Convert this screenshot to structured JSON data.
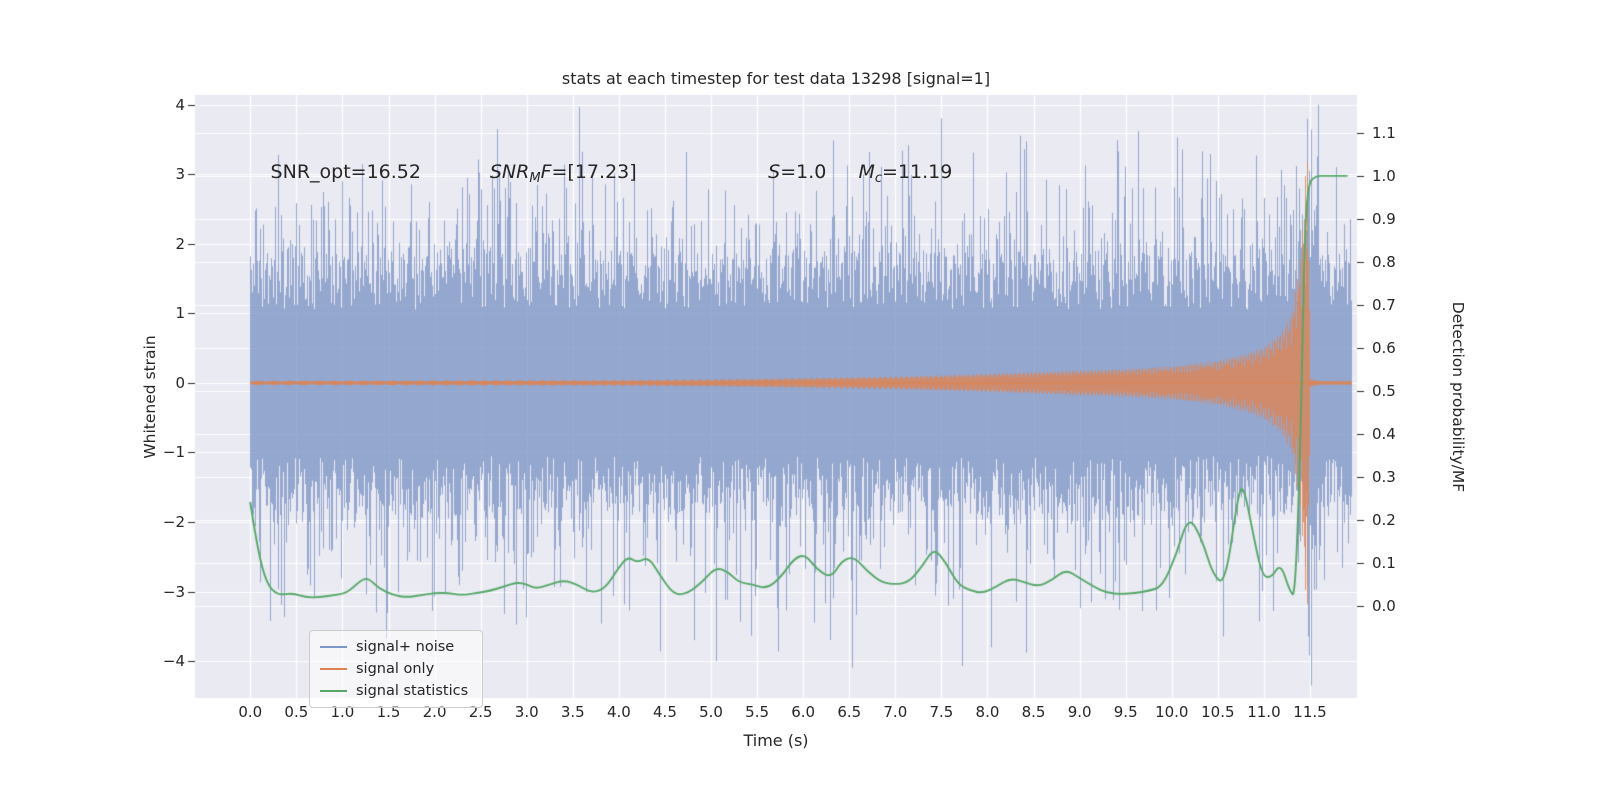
{
  "chart_data": {
    "type": "line",
    "title": "stats at each timestep for test data 13298 [signal=1]",
    "xlabel": "Time (s)",
    "ylabel_left": "Whitened strain",
    "ylabel_right": "Detection probability/MF",
    "xlim": [
      -0.6,
      12.01
    ],
    "ylim_left": [
      -4.53,
      4.14
    ],
    "ylim_right": [
      -0.214,
      1.188
    ],
    "grid": true,
    "background": "#eaeaf2",
    "grid_color": "#ffffff",
    "x_ticks": [
      0.0,
      0.5,
      1.0,
      1.5,
      2.0,
      2.5,
      3.0,
      3.5,
      4.0,
      4.5,
      5.0,
      5.5,
      6.0,
      6.5,
      7.0,
      7.5,
      8.0,
      8.5,
      9.0,
      9.5,
      10.0,
      10.5,
      11.0,
      11.5
    ],
    "y_ticks_left": [
      -4,
      -3,
      -2,
      -1,
      0,
      1,
      2,
      3,
      4
    ],
    "y_ticks_right": [
      0.0,
      0.1,
      0.2,
      0.3,
      0.4,
      0.5,
      0.6,
      0.7,
      0.8,
      0.9,
      1.0,
      1.1
    ],
    "legend": {
      "position": "lower left",
      "entries": [
        {
          "label": "signal+ noise",
          "color": "#7e96c6"
        },
        {
          "label": "signal only",
          "color": "#dd8452"
        },
        {
          "label": "signal statistics",
          "color": "#55a868"
        }
      ]
    },
    "annotations": [
      {
        "id": "snr-opt",
        "x": 0.22,
        "y": 3.03,
        "segments": [
          {
            "t": "SNR_opt=16.52"
          }
        ]
      },
      {
        "id": "snr-mf",
        "x": 2.6,
        "y": 3.03,
        "segments": [
          {
            "t": "SNR",
            "i": true
          },
          {
            "t": "M",
            "i": true,
            "sub": true
          },
          {
            "t": "F",
            "i": true
          },
          {
            "t": "=[17.23]"
          }
        ]
      },
      {
        "id": "s-value",
        "x": 5.62,
        "y": 3.03,
        "segments": [
          {
            "t": "S",
            "i": true
          },
          {
            "t": "=1.0"
          }
        ]
      },
      {
        "id": "chirp-mass",
        "x": 6.6,
        "y": 3.03,
        "segments": [
          {
            "t": "M",
            "i": true
          },
          {
            "t": "c",
            "i": true,
            "sub": true
          },
          {
            "t": "=11.19"
          }
        ]
      }
    ],
    "series": [
      {
        "name": "signal+ noise",
        "kind": "noise",
        "color": "#7e96c6",
        "alpha": 0.8,
        "x_range": [
          0,
          11.95
        ],
        "core_band": [
          1.05,
          1.9
        ],
        "spike_max": 4.0,
        "spike_min": -4.35,
        "burst_time": 11.5,
        "burst_gain": 0.55,
        "seed": 13298
      },
      {
        "name": "signal only",
        "kind": "chirp",
        "color": "#dd8452",
        "alpha": 0.8,
        "x_range": [
          0,
          11.95
        ],
        "merger_time": 11.45,
        "freq": [
          3,
          0.12
        ],
        "envelope": [
          [
            0,
            0.03
          ],
          [
            4,
            0.04
          ],
          [
            5,
            0.05
          ],
          [
            6,
            0.07
          ],
          [
            7,
            0.09
          ],
          [
            8,
            0.13
          ],
          [
            9,
            0.18
          ],
          [
            9.5,
            0.2
          ],
          [
            10,
            0.24
          ],
          [
            10.5,
            0.32
          ],
          [
            10.8,
            0.42
          ],
          [
            11.0,
            0.52
          ],
          [
            11.2,
            0.75
          ],
          [
            11.3,
            1.0
          ],
          [
            11.4,
            1.9
          ],
          [
            11.45,
            3.2
          ],
          [
            11.47,
            3.2
          ],
          [
            11.5,
            0.06
          ],
          [
            11.6,
            0.03
          ],
          [
            11.95,
            0.03
          ]
        ]
      },
      {
        "name": "signal statistics",
        "kind": "line",
        "axis": "right",
        "color": "#55a868",
        "points": [
          [
            0.0,
            0.24
          ],
          [
            0.08,
            0.13
          ],
          [
            0.18,
            0.05
          ],
          [
            0.3,
            0.025
          ],
          [
            0.45,
            0.03
          ],
          [
            0.6,
            0.02
          ],
          [
            0.75,
            0.02
          ],
          [
            0.9,
            0.025
          ],
          [
            1.05,
            0.03
          ],
          [
            1.2,
            0.06
          ],
          [
            1.28,
            0.065
          ],
          [
            1.4,
            0.04
          ],
          [
            1.55,
            0.025
          ],
          [
            1.7,
            0.02
          ],
          [
            1.85,
            0.025
          ],
          [
            2.0,
            0.03
          ],
          [
            2.15,
            0.03
          ],
          [
            2.3,
            0.025
          ],
          [
            2.45,
            0.03
          ],
          [
            2.6,
            0.035
          ],
          [
            2.75,
            0.045
          ],
          [
            2.9,
            0.055
          ],
          [
            3.0,
            0.05
          ],
          [
            3.1,
            0.04
          ],
          [
            3.25,
            0.05
          ],
          [
            3.4,
            0.06
          ],
          [
            3.55,
            0.05
          ],
          [
            3.7,
            0.03
          ],
          [
            3.85,
            0.04
          ],
          [
            4.0,
            0.09
          ],
          [
            4.1,
            0.115
          ],
          [
            4.2,
            0.1
          ],
          [
            4.32,
            0.115
          ],
          [
            4.45,
            0.07
          ],
          [
            4.6,
            0.025
          ],
          [
            4.75,
            0.03
          ],
          [
            4.9,
            0.055
          ],
          [
            5.05,
            0.09
          ],
          [
            5.18,
            0.08
          ],
          [
            5.3,
            0.055
          ],
          [
            5.45,
            0.05
          ],
          [
            5.6,
            0.04
          ],
          [
            5.75,
            0.065
          ],
          [
            5.9,
            0.11
          ],
          [
            6.02,
            0.12
          ],
          [
            6.15,
            0.085
          ],
          [
            6.3,
            0.065
          ],
          [
            6.42,
            0.105
          ],
          [
            6.55,
            0.115
          ],
          [
            6.7,
            0.08
          ],
          [
            6.85,
            0.055
          ],
          [
            7.0,
            0.05
          ],
          [
            7.15,
            0.055
          ],
          [
            7.3,
            0.095
          ],
          [
            7.42,
            0.135
          ],
          [
            7.55,
            0.1
          ],
          [
            7.68,
            0.05
          ],
          [
            7.82,
            0.035
          ],
          [
            7.95,
            0.03
          ],
          [
            8.1,
            0.045
          ],
          [
            8.25,
            0.065
          ],
          [
            8.4,
            0.055
          ],
          [
            8.55,
            0.045
          ],
          [
            8.7,
            0.06
          ],
          [
            8.85,
            0.085
          ],
          [
            9.0,
            0.065
          ],
          [
            9.15,
            0.045
          ],
          [
            9.3,
            0.03
          ],
          [
            9.45,
            0.028
          ],
          [
            9.6,
            0.03
          ],
          [
            9.75,
            0.035
          ],
          [
            9.9,
            0.045
          ],
          [
            10.05,
            0.12
          ],
          [
            10.18,
            0.21
          ],
          [
            10.32,
            0.16
          ],
          [
            10.45,
            0.07
          ],
          [
            10.58,
            0.05
          ],
          [
            10.72,
            0.26
          ],
          [
            10.78,
            0.28
          ],
          [
            10.88,
            0.17
          ],
          [
            10.98,
            0.07
          ],
          [
            11.08,
            0.065
          ],
          [
            11.18,
            0.1
          ],
          [
            11.28,
            0.035
          ],
          [
            11.34,
            0.02
          ],
          [
            11.4,
            0.4
          ],
          [
            11.44,
            0.85
          ],
          [
            11.48,
            0.98
          ],
          [
            11.55,
            1.0
          ],
          [
            11.7,
            1.0
          ],
          [
            11.9,
            1.0
          ]
        ]
      }
    ]
  }
}
